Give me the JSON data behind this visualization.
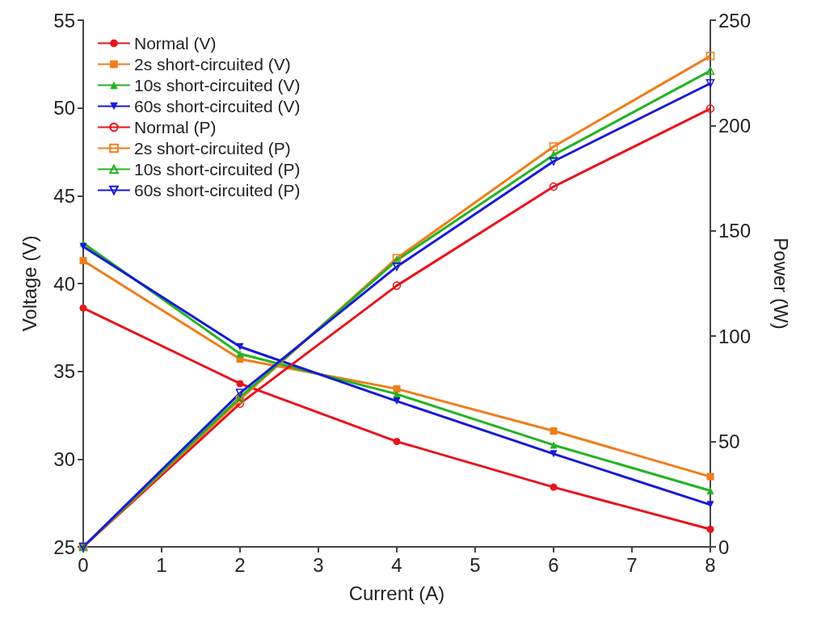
{
  "chart_data": {
    "type": "line",
    "xlabel": "Current (A)",
    "ylabel": "Voltage (V)",
    "y2label": "Power (W)",
    "x": [
      0,
      2,
      4,
      6,
      8
    ],
    "xlim": [
      0,
      8
    ],
    "xticks": [
      0,
      1,
      2,
      3,
      4,
      5,
      6,
      7,
      8
    ],
    "ylim": [
      25,
      55
    ],
    "yticks": [
      25,
      30,
      35,
      40,
      45,
      50,
      55
    ],
    "y2lim": [
      0,
      250
    ],
    "y2ticks": [
      0,
      50,
      100,
      150,
      200,
      250
    ],
    "grid": false,
    "legend": "top left",
    "line_style": "solid",
    "series": [
      {
        "name": "Normal (V)",
        "color": "#e8141c",
        "marker": "circle",
        "values": [
          38.6,
          34.3,
          31.0,
          28.4,
          26.0
        ]
      },
      {
        "name": "2s short-circuited (V)",
        "color": "#f07d1a",
        "marker": "square",
        "values": [
          41.3,
          35.7,
          34.0,
          31.6,
          29.0
        ]
      },
      {
        "name": "10s short-circuited (V)",
        "color": "#22b422",
        "marker": "triangle",
        "values": [
          42.3,
          36.0,
          33.7,
          30.8,
          28.2
        ]
      },
      {
        "name": "60s short-circuited (V)",
        "color": "#1818d8",
        "marker": "triangle-down",
        "values": [
          42.1,
          36.4,
          33.3,
          30.3,
          27.4
        ]
      },
      {
        "name": "Normal (P)",
        "color": "#e8141c",
        "marker": "circle",
        "axis": "y2",
        "values": [
          0,
          68,
          124,
          171,
          208
        ]
      },
      {
        "name": "2s short-circuited (P)",
        "color": "#f07d1a",
        "marker": "square",
        "axis": "y2",
        "values": [
          0,
          70,
          137,
          190,
          233
        ]
      },
      {
        "name": "10s short-circuited (P)",
        "color": "#22b422",
        "marker": "triangle",
        "axis": "y2",
        "values": [
          0,
          71,
          136,
          186,
          226
        ]
      },
      {
        "name": "60s short-circuited (P)",
        "color": "#1818d8",
        "marker": "triangle-down",
        "axis": "y2",
        "values": [
          0,
          73,
          133,
          183,
          220
        ]
      }
    ]
  }
}
